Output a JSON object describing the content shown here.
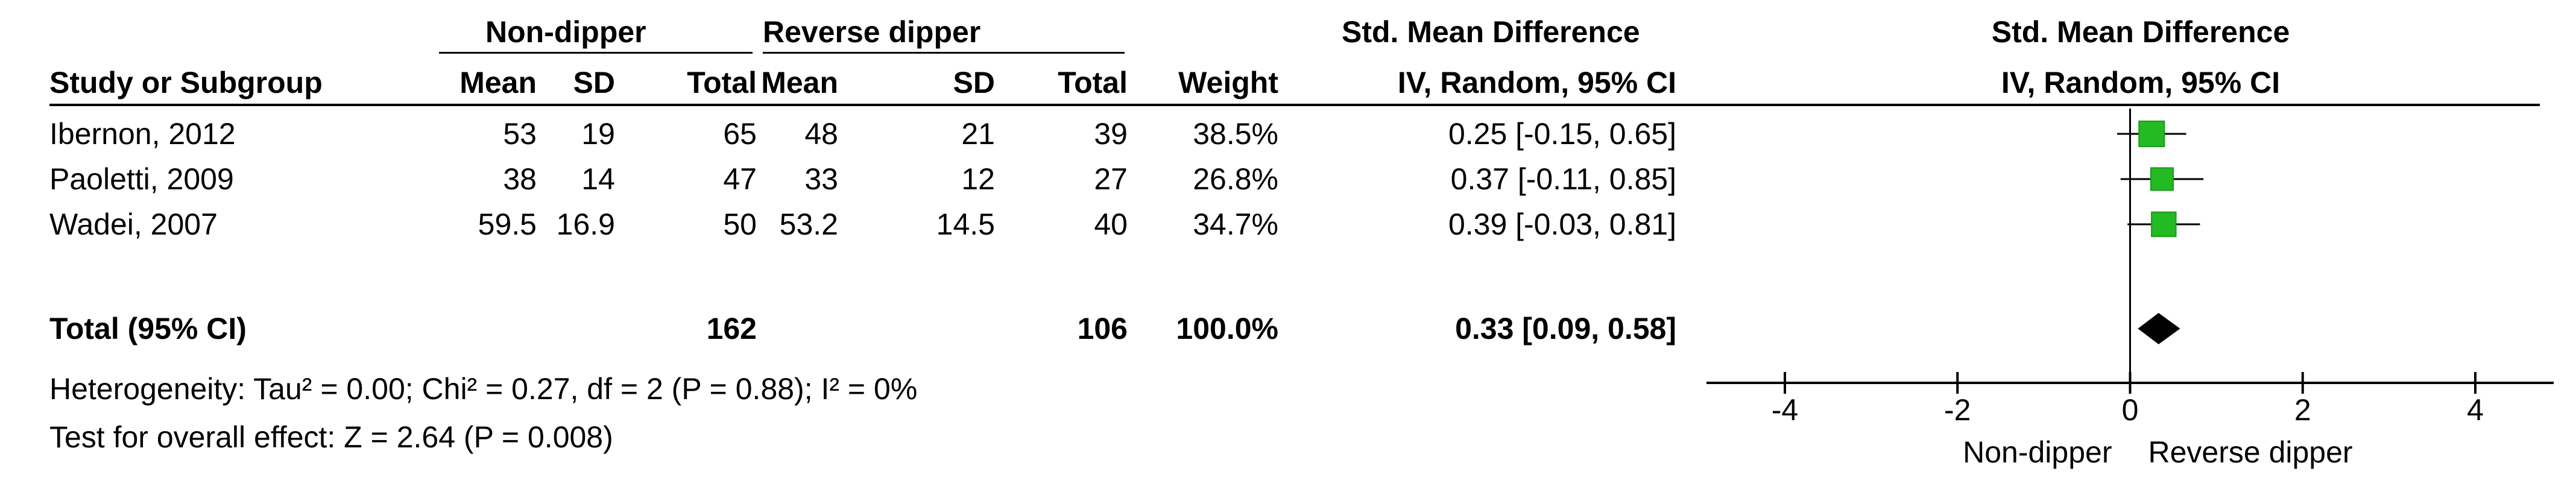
{
  "header": {
    "group1_label": "Non-dipper",
    "group2_label": "Reverse dipper",
    "smd_label": "Std. Mean Difference",
    "method_label": "IV, Random, 95% CI",
    "plot_title": "Std. Mean Difference",
    "plot_method": "IV, Random, 95% CI",
    "col_study": "Study or Subgroup",
    "col_mean1": "Mean",
    "col_sd1": "SD",
    "col_total1": "Total",
    "col_mean2": "Mean",
    "col_sd2": "SD",
    "col_total2": "Total",
    "col_weight": "Weight"
  },
  "studies": [
    {
      "name": "Ibernon, 2012",
      "mean1": "53",
      "sd1": "19",
      "total1": "65",
      "mean2": "48",
      "sd2": "21",
      "total2": "39",
      "weight": "38.5%",
      "ci_text": "0.25 [-0.15, 0.65]"
    },
    {
      "name": "Paoletti, 2009",
      "mean1": "38",
      "sd1": "14",
      "total1": "47",
      "mean2": "33",
      "sd2": "12",
      "total2": "27",
      "weight": "26.8%",
      "ci_text": "0.37 [-0.11, 0.85]"
    },
    {
      "name": "Wadei, 2007",
      "mean1": "59.5",
      "sd1": "16.9",
      "total1": "50",
      "mean2": "53.2",
      "sd2": "14.5",
      "total2": "40",
      "weight": "34.7%",
      "ci_text": "0.39 [-0.03, 0.81]"
    }
  ],
  "total": {
    "label": "Total (95% CI)",
    "total1": "162",
    "total2": "106",
    "weight": "100.0%",
    "ci_text": "0.33 [0.09, 0.58]"
  },
  "footer": {
    "heterogeneity": "Heterogeneity: Tau² = 0.00; Chi² = 0.27, df = 2 (P = 0.88); I² = 0%",
    "overall": "Test for overall effect: Z = 2.64 (P = 0.008)"
  },
  "axis_labels": {
    "left": "Non-dipper",
    "right": "Reverse dipper"
  },
  "chart_data": {
    "type": "forest",
    "title": "Std. Mean Difference",
    "subtitle": "IV, Random, 95% CI",
    "studies": [
      {
        "name": "Ibernon, 2012",
        "estimate": 0.25,
        "lower": -0.15,
        "upper": 0.65,
        "weight": 38.5
      },
      {
        "name": "Paoletti, 2009",
        "estimate": 0.37,
        "lower": -0.11,
        "upper": 0.85,
        "weight": 26.8
      },
      {
        "name": "Wadei, 2007",
        "estimate": 0.39,
        "lower": -0.03,
        "upper": 0.81,
        "weight": 34.7
      }
    ],
    "pooled": {
      "estimate": 0.33,
      "lower": 0.09,
      "upper": 0.58
    },
    "xlim": [
      -4,
      4
    ],
    "xticks": [
      -4,
      -2,
      0,
      2,
      4
    ],
    "xtick_labels": [
      "-4",
      "-2",
      "0",
      "2",
      "4"
    ],
    "left_label": "Non-dipper",
    "right_label": "Reverse dipper",
    "marker_color": "#22bb22",
    "diamond_color": "#000000"
  }
}
